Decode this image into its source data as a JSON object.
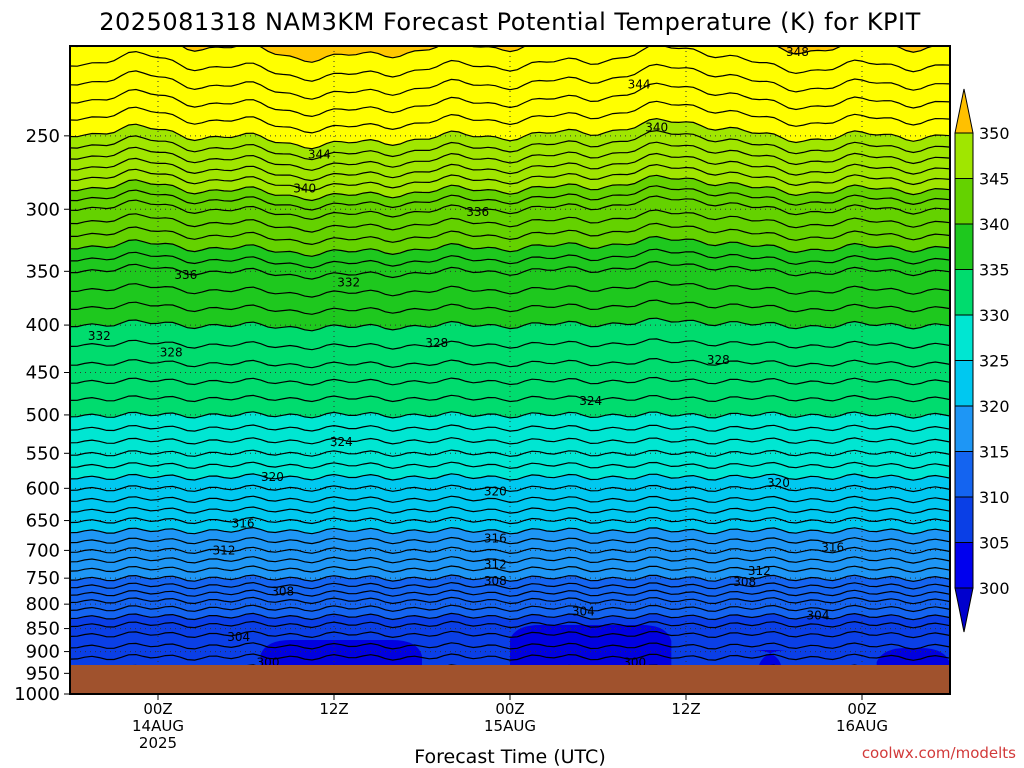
{
  "chart_data": {
    "type": "heatmap",
    "title": "2025081318 NAM3KM Forecast Potential Temperature (K) for KPIT",
    "xlabel": "Forecast Time (UTC)",
    "ylabel": "",
    "credit": "coolwx.com/modelts",
    "x_ticks": [
      {
        "hours_from_start": 6,
        "line1": "00Z",
        "line2": "14AUG",
        "line3": "2025"
      },
      {
        "hours_from_start": 18,
        "line1": "12Z",
        "line2": "",
        "line3": ""
      },
      {
        "hours_from_start": 30,
        "line1": "00Z",
        "line2": "15AUG",
        "line3": ""
      },
      {
        "hours_from_start": 42,
        "line1": "12Z",
        "line2": "",
        "line3": ""
      },
      {
        "hours_from_start": 54,
        "line1": "00Z",
        "line2": "16AUG",
        "line3": ""
      }
    ],
    "xlim_hours": [
      0,
      60
    ],
    "y_ticks": [
      "250",
      "300",
      "350",
      "400",
      "450",
      "500",
      "550",
      "600",
      "650",
      "700",
      "750",
      "800",
      "850",
      "900",
      "950",
      "1000"
    ],
    "ylim_hpa": [
      200,
      1000
    ],
    "y_reversed": true,
    "colorbar": {
      "labels": [
        "300",
        "305",
        "310",
        "315",
        "320",
        "325",
        "330",
        "335",
        "340",
        "345",
        "350"
      ],
      "levels": [
        300,
        305,
        310,
        315,
        320,
        325,
        330,
        335,
        340,
        345,
        350
      ],
      "colors": [
        "#0000ff",
        "#0a3fe6",
        "#1464f0",
        "#1e96f5",
        "#00c8f0",
        "#00e6d2",
        "#00dc6e",
        "#1ec81e",
        "#64d200",
        "#a0e600",
        "#ffff00",
        "#ffb400"
      ],
      "below_color": "#0000cd",
      "above_color": "#ffc000"
    },
    "ground_color": "#a0522d",
    "contours": [
      {
        "level": 300,
        "label": "300"
      },
      {
        "level": 304,
        "label": "304"
      },
      {
        "level": 308,
        "label": "308"
      },
      {
        "level": 312,
        "label": "312"
      },
      {
        "level": 316,
        "label": "316"
      },
      {
        "level": 320,
        "label": "320"
      },
      {
        "level": 324,
        "label": "324"
      },
      {
        "level": 328,
        "label": "328"
      },
      {
        "level": 332,
        "label": "332"
      },
      {
        "level": 336,
        "label": "336"
      },
      {
        "level": 340,
        "label": "340"
      },
      {
        "level": 344,
        "label": "344"
      },
      {
        "level": 348,
        "label": "348"
      }
    ],
    "contour_label_positions": [
      {
        "label": "300",
        "hours": 13.5,
        "hpa": 925
      },
      {
        "label": "300",
        "hours": 38.5,
        "hpa": 925
      },
      {
        "label": "304",
        "hours": 11.5,
        "hpa": 868
      },
      {
        "label": "304",
        "hours": 35.0,
        "hpa": 815
      },
      {
        "label": "304",
        "hours": 51.0,
        "hpa": 823
      },
      {
        "label": "308",
        "hours": 14.5,
        "hpa": 775
      },
      {
        "label": "308",
        "hours": 29.0,
        "hpa": 755
      },
      {
        "label": "308",
        "hours": 46.0,
        "hpa": 757
      },
      {
        "label": "312",
        "hours": 10.5,
        "hpa": 700
      },
      {
        "level": 312,
        "label": "312",
        "hours": 29.0,
        "hpa": 725
      },
      {
        "label": "312",
        "hours": 47.0,
        "hpa": 737
      },
      {
        "label": "316",
        "hours": 11.8,
        "hpa": 655
      },
      {
        "label": "316",
        "hours": 29.0,
        "hpa": 680
      },
      {
        "label": "316",
        "hours": 52.0,
        "hpa": 695
      },
      {
        "label": "320",
        "hours": 13.8,
        "hpa": 583
      },
      {
        "label": "320",
        "hours": 29.0,
        "hpa": 605
      },
      {
        "label": "320",
        "hours": 48.3,
        "hpa": 592
      },
      {
        "label": "324",
        "hours": 18.5,
        "hpa": 535
      },
      {
        "label": "324",
        "hours": 35.5,
        "hpa": 483
      },
      {
        "label": "328",
        "hours": 6.9,
        "hpa": 428
      },
      {
        "label": "328",
        "hours": 25.0,
        "hpa": 418
      },
      {
        "label": "328",
        "hours": 44.2,
        "hpa": 436
      },
      {
        "label": "332",
        "hours": 2.0,
        "hpa": 411
      },
      {
        "label": "332",
        "hours": 19.0,
        "hpa": 360
      },
      {
        "label": "336",
        "hours": 7.9,
        "hpa": 353
      },
      {
        "label": "336",
        "hours": 27.8,
        "hpa": 302
      },
      {
        "label": "340",
        "hours": 16.0,
        "hpa": 285
      },
      {
        "label": "340",
        "hours": 40.0,
        "hpa": 245
      },
      {
        "label": "344",
        "hours": 17.0,
        "hpa": 262
      },
      {
        "label": "344",
        "hours": 38.8,
        "hpa": 220
      },
      {
        "label": "348",
        "hours": 49.6,
        "hpa": 203
      }
    ]
  }
}
